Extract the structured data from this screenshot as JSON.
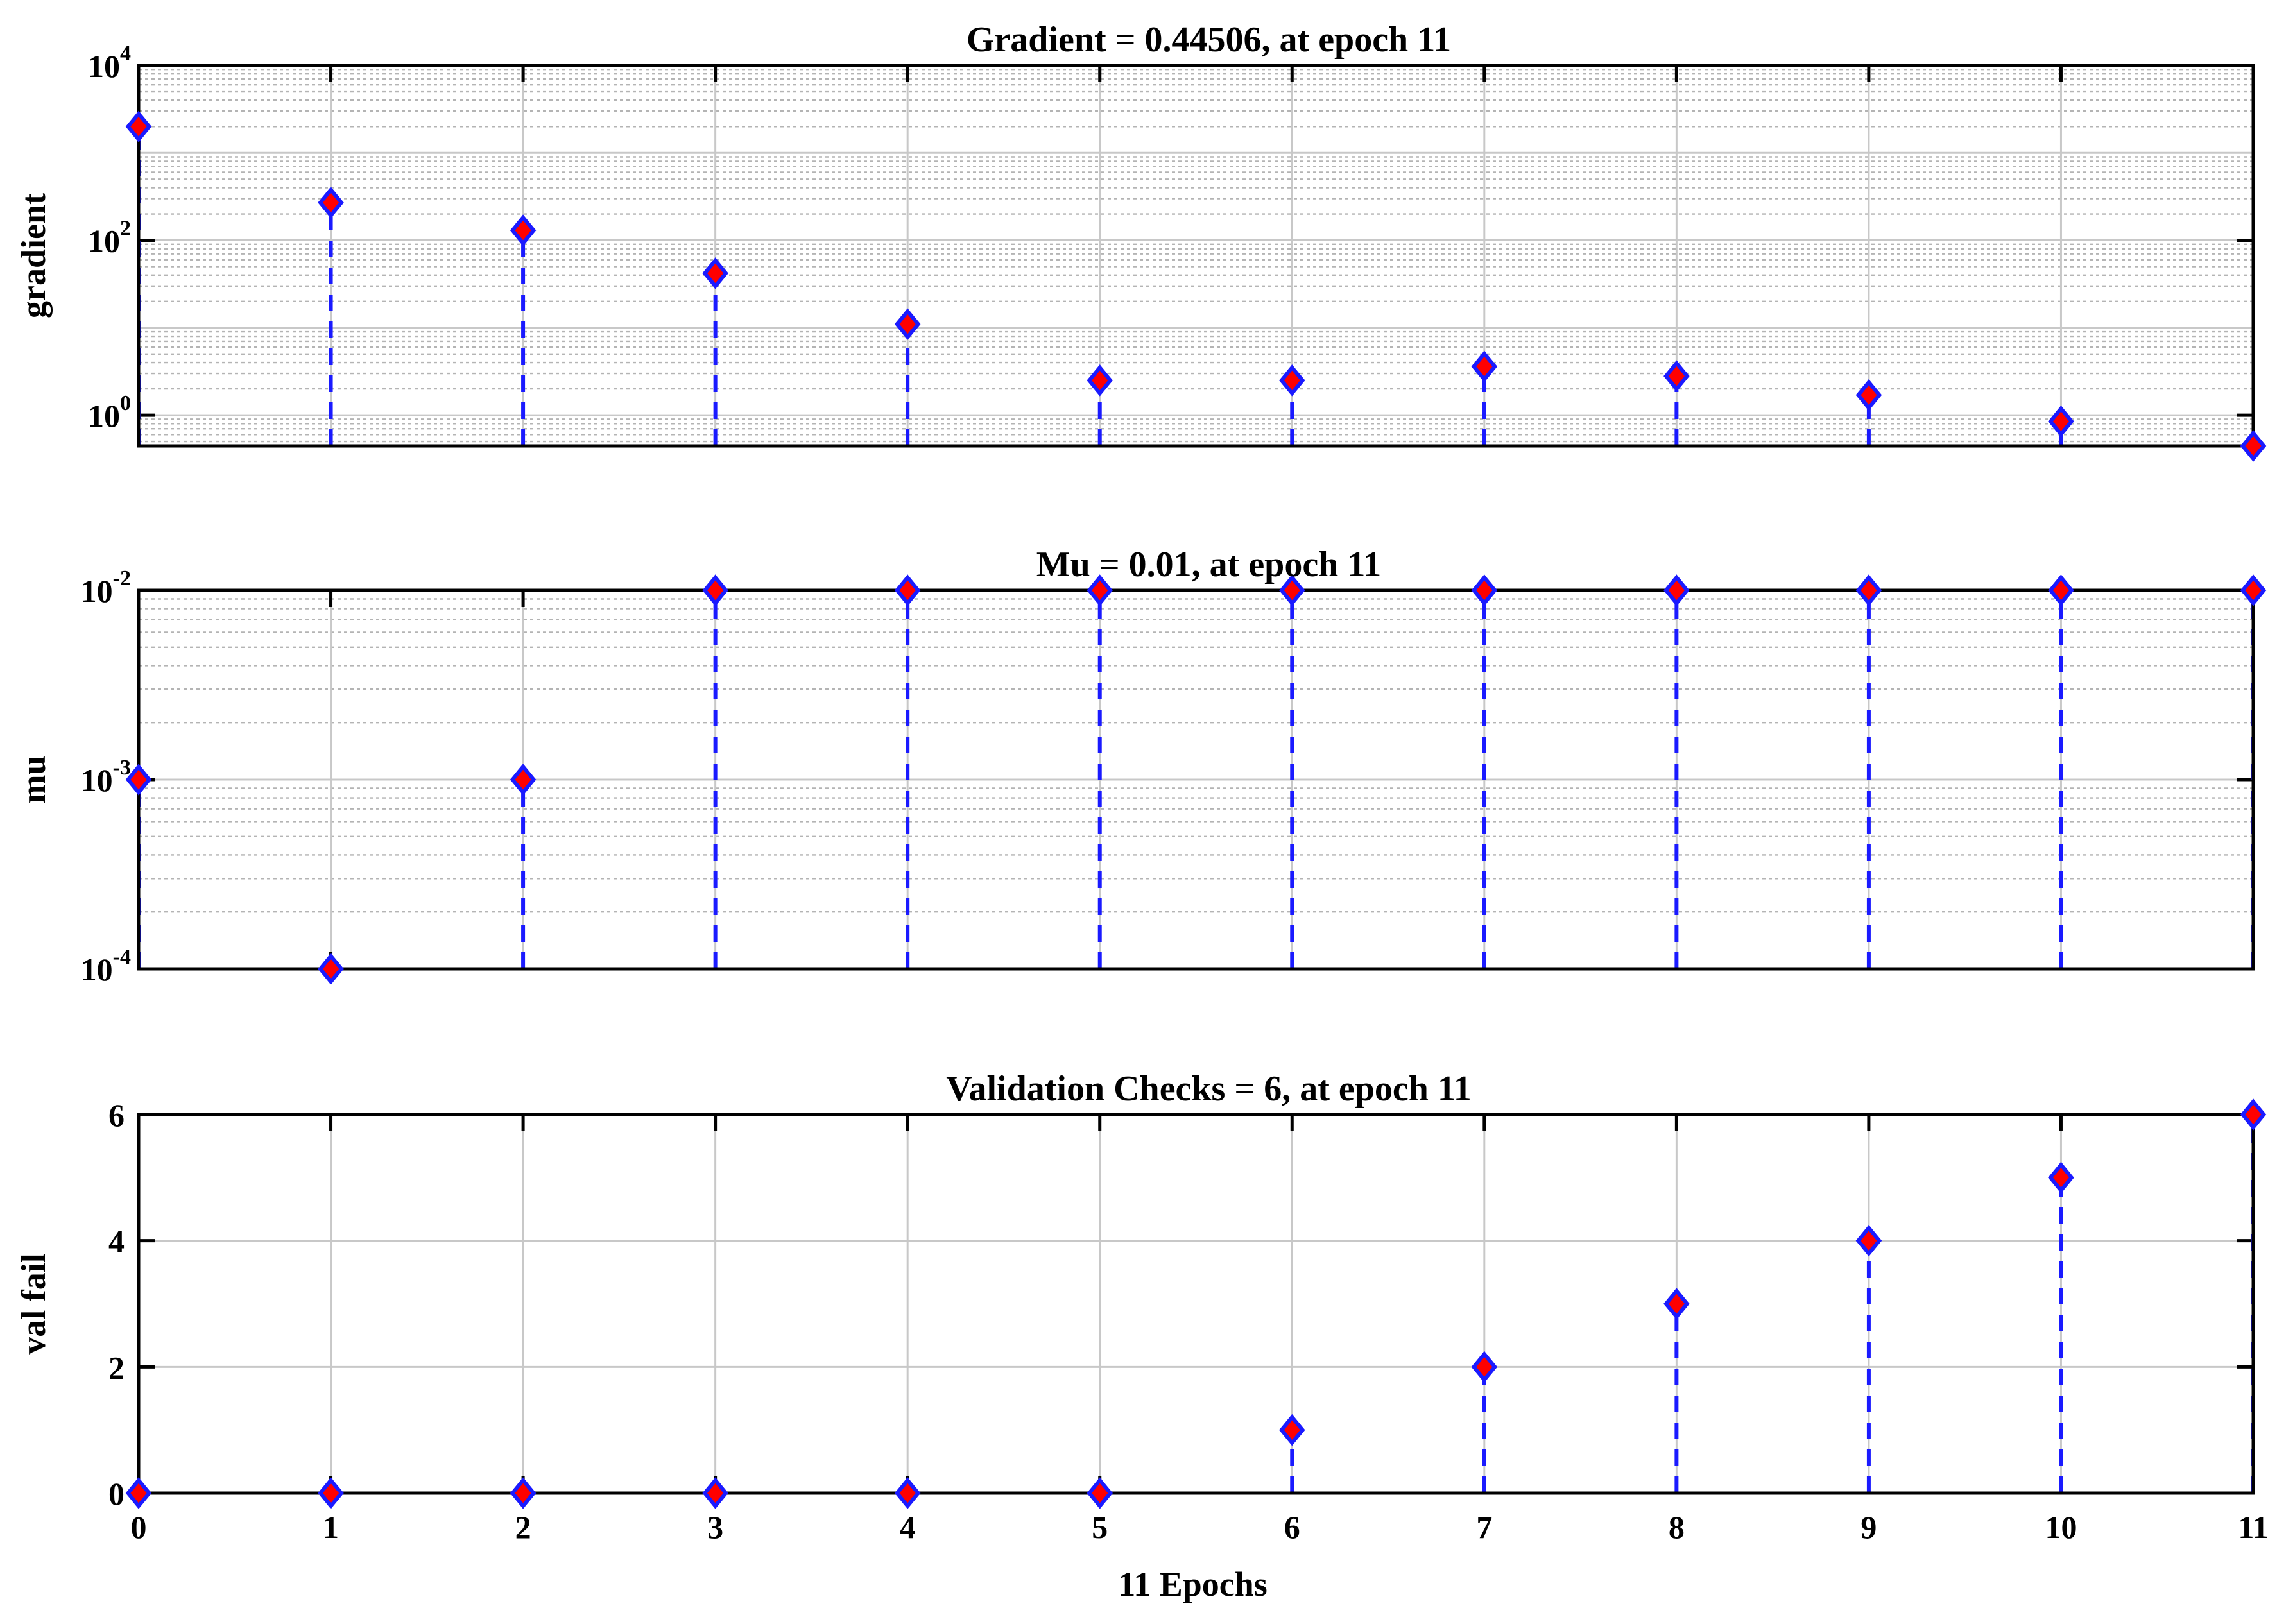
{
  "colors": {
    "stem": "#1a1aff",
    "marker_fill": "#ff0000",
    "marker_edge": "#1a1aff"
  },
  "chart_data": [
    {
      "type": "stem",
      "title": "Gradient = 0.44506, at epoch 11",
      "ylabel": "gradient",
      "xlabel": "",
      "yscale": "log",
      "ylim": [
        0.44506,
        10000
      ],
      "xlim": [
        0,
        11
      ],
      "grid": "major and minor",
      "x": [
        0,
        1,
        2,
        3,
        4,
        5,
        6,
        7,
        8,
        9,
        10,
        11
      ],
      "values": [
        2000,
        270,
        130,
        42,
        11,
        2.5,
        2.5,
        3.6,
        2.8,
        1.7,
        0.85,
        0.44506
      ],
      "yticks": [
        {
          "base": "10",
          "exp": "0",
          "value": 1
        },
        {
          "base": "10",
          "exp": "2",
          "value": 100
        },
        {
          "base": "10",
          "exp": "4",
          "value": 10000
        }
      ]
    },
    {
      "type": "stem",
      "title": "Mu = 0.01, at epoch 11",
      "ylabel": "mu",
      "xlabel": "",
      "yscale": "log",
      "ylim": [
        0.0001,
        0.01
      ],
      "xlim": [
        0,
        11
      ],
      "grid": "major and minor",
      "x": [
        0,
        1,
        2,
        3,
        4,
        5,
        6,
        7,
        8,
        9,
        10,
        11
      ],
      "values": [
        0.001,
        0.0001,
        0.001,
        0.01,
        0.01,
        0.01,
        0.01,
        0.01,
        0.01,
        0.01,
        0.01,
        0.01
      ],
      "yticks": [
        {
          "base": "10",
          "exp": "-4",
          "value": 0.0001
        },
        {
          "base": "10",
          "exp": "-3",
          "value": 0.001
        },
        {
          "base": "10",
          "exp": "-2",
          "value": 0.01
        }
      ]
    },
    {
      "type": "stem",
      "title": "Validation Checks = 6, at epoch 11",
      "ylabel": "val fail",
      "xlabel": "11 Epochs",
      "yscale": "linear",
      "ylim": [
        0,
        6
      ],
      "xlim": [
        0,
        11
      ],
      "grid": "major",
      "x": [
        0,
        1,
        2,
        3,
        4,
        5,
        6,
        7,
        8,
        9,
        10,
        11
      ],
      "values": [
        0,
        0,
        0,
        0,
        0,
        0,
        1,
        2,
        3,
        4,
        5,
        6
      ],
      "yticks": [
        {
          "label": "0",
          "value": 0
        },
        {
          "label": "2",
          "value": 2
        },
        {
          "label": "4",
          "value": 4
        },
        {
          "label": "6",
          "value": 6
        }
      ],
      "xticks": [
        "0",
        "1",
        "2",
        "3",
        "4",
        "5",
        "6",
        "7",
        "8",
        "9",
        "10",
        "11"
      ]
    }
  ]
}
